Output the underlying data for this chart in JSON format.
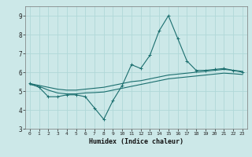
{
  "xlabel": "Humidex (Indice chaleur)",
  "background_color": "#cce8e8",
  "grid_color": "#b0d8d8",
  "line_color": "#1a6e6e",
  "x_values": [
    0,
    1,
    2,
    3,
    4,
    5,
    6,
    7,
    8,
    9,
    10,
    11,
    12,
    13,
    14,
    15,
    16,
    17,
    18,
    19,
    20,
    21,
    22,
    23
  ],
  "y_main": [
    5.4,
    5.2,
    4.7,
    4.7,
    4.8,
    4.8,
    4.7,
    4.1,
    3.5,
    4.5,
    5.3,
    6.4,
    6.2,
    6.9,
    8.2,
    9.0,
    7.8,
    6.6,
    6.1,
    6.1,
    6.15,
    6.2,
    6.1,
    6.0
  ],
  "y_upper": [
    5.4,
    5.3,
    5.2,
    5.1,
    5.05,
    5.05,
    5.1,
    5.15,
    5.2,
    5.3,
    5.4,
    5.5,
    5.55,
    5.65,
    5.75,
    5.85,
    5.9,
    5.95,
    6.0,
    6.05,
    6.1,
    6.15,
    6.1,
    6.05
  ],
  "y_lower": [
    5.35,
    5.25,
    5.05,
    4.9,
    4.85,
    4.85,
    4.9,
    4.92,
    4.95,
    5.05,
    5.15,
    5.25,
    5.35,
    5.45,
    5.55,
    5.65,
    5.7,
    5.75,
    5.8,
    5.85,
    5.9,
    5.95,
    5.92,
    5.88
  ],
  "ylim": [
    3.0,
    9.5
  ],
  "xlim": [
    -0.5,
    23.5
  ],
  "yticks": [
    3,
    4,
    5,
    6,
    7,
    8,
    9
  ],
  "xticks": [
    0,
    1,
    2,
    3,
    4,
    5,
    6,
    7,
    8,
    9,
    10,
    11,
    12,
    13,
    14,
    15,
    16,
    17,
    18,
    19,
    20,
    21,
    22,
    23
  ]
}
